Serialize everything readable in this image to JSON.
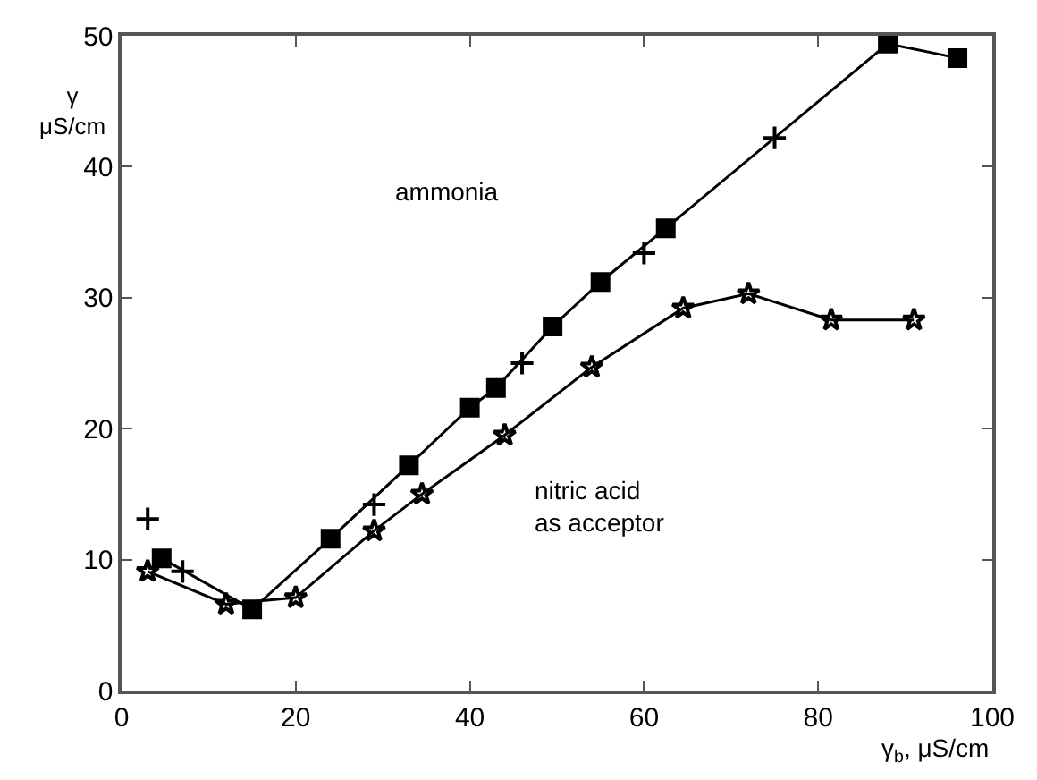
{
  "chart_data": {
    "type": "line",
    "xlabel": "γ$_{b}$, μS/cm",
    "ylabel": "γ\nμS/cm",
    "xlim": [
      0,
      100
    ],
    "xticks": [
      0,
      20,
      40,
      60,
      80,
      100
    ],
    "ylim": [
      0,
      50
    ],
    "yticks": [
      0,
      10,
      20,
      30,
      40,
      50
    ],
    "legend": false,
    "series": [
      {
        "marker": "square",
        "color": "#000000",
        "x": [
          4.6,
          15,
          24,
          33,
          40,
          43,
          49.5,
          55,
          62.5,
          88,
          96
        ],
        "values": [
          10.1,
          6.2,
          11.6,
          17.2,
          21.6,
          23.1,
          27.8,
          31.2,
          35.3,
          49.4,
          48.3
        ]
      },
      {
        "type": "scatter",
        "marker": "cross",
        "color": "#000000",
        "x": [
          3,
          7,
          29,
          46,
          60,
          75
        ],
        "values": [
          13.1,
          9.1,
          14.2,
          25,
          33.4,
          42.2
        ]
      },
      {
        "marker": "star",
        "color": "#000000",
        "x": [
          3,
          12,
          20,
          29,
          34.5,
          44,
          54,
          64.5,
          72,
          81.5,
          91
        ],
        "values": [
          9.1,
          6.6,
          7.1,
          12.2,
          15.0,
          19.5,
          24.7,
          29.2,
          30.3,
          28.3,
          28.3
        ]
      }
    ],
    "annotations": [
      "ammonia",
      "nitric acid\nas acceptor"
    ]
  }
}
